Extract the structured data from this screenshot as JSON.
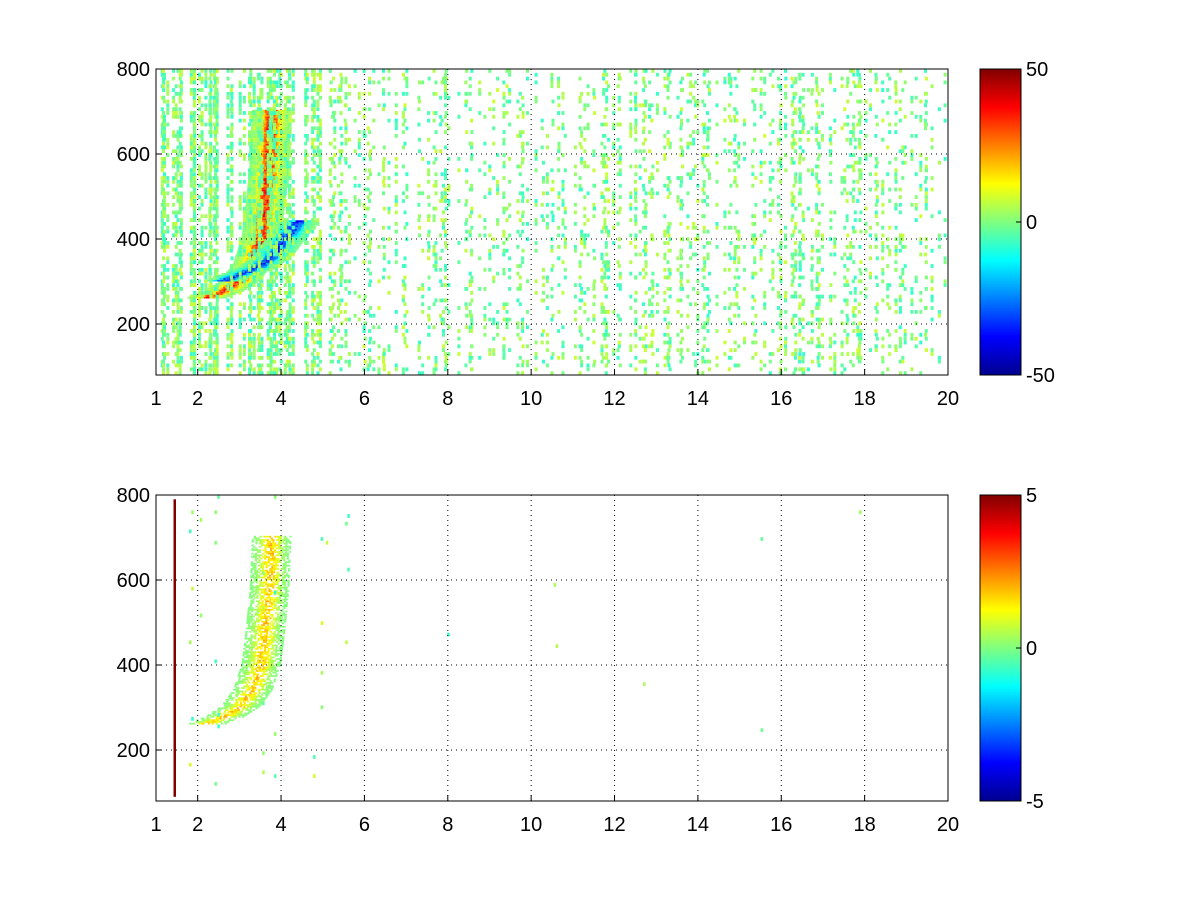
{
  "chart_data": [
    {
      "type": "heatmap",
      "title": "",
      "xlabel": "",
      "ylabel": "",
      "xlim": [
        1,
        20
      ],
      "ylim": [
        80,
        800
      ],
      "x_ticks": [
        "1",
        "2",
        "4",
        "6",
        "8",
        "10",
        "12",
        "14",
        "16",
        "18",
        "20"
      ],
      "x_tick_values": [
        1,
        2,
        4,
        6,
        8,
        10,
        12,
        14,
        16,
        18,
        20
      ],
      "y_ticks": [
        "200",
        "400",
        "600",
        "800"
      ],
      "y_tick_values": [
        200,
        400,
        600,
        800
      ],
      "grid": true,
      "colormap": "jet",
      "colorbar": {
        "min": -50,
        "max": 50,
        "tick_labels": [
          "50",
          "0",
          "-50"
        ],
        "tick_values": [
          50,
          0,
          -50
        ]
      },
      "features": [
        {
          "name": "positive curved ridge",
          "x": [
            2.2,
            2.6,
            3.0,
            3.3,
            3.5,
            3.6,
            3.7,
            3.75
          ],
          "y": [
            260,
            275,
            300,
            340,
            400,
            480,
            580,
            700
          ],
          "value": 40
        },
        {
          "name": "negative curved ridge",
          "x": [
            2.6,
            3.0,
            3.4,
            3.8,
            4.1,
            4.4
          ],
          "y": [
            300,
            315,
            330,
            360,
            400,
            440
          ],
          "value": -40
        }
      ],
      "background_noise_amplitude": 8
    },
    {
      "type": "heatmap",
      "title": "",
      "xlabel": "",
      "ylabel": "",
      "xlim": [
        1,
        20
      ],
      "ylim": [
        80,
        800
      ],
      "x_ticks": [
        "1",
        "2",
        "4",
        "6",
        "8",
        "10",
        "12",
        "14",
        "16",
        "18",
        "20"
      ],
      "x_tick_values": [
        1,
        2,
        4,
        6,
        8,
        10,
        12,
        14,
        16,
        18,
        20
      ],
      "y_ticks": [
        "200",
        "400",
        "600",
        "800"
      ],
      "y_tick_values": [
        200,
        400,
        600,
        800
      ],
      "grid": true,
      "colormap": "jet",
      "colorbar": {
        "min": -5,
        "max": 5,
        "tick_labels": [
          "5",
          "0",
          "-5"
        ],
        "tick_values": [
          5,
          0,
          -5
        ]
      },
      "features": [
        {
          "name": "curved ridge band",
          "x": [
            2.2,
            2.6,
            3.0,
            3.3,
            3.5,
            3.6,
            3.7,
            3.75
          ],
          "y": [
            260,
            275,
            300,
            340,
            400,
            480,
            580,
            700
          ],
          "value": 2
        },
        {
          "name": "vertical line near x=1.4",
          "x": [
            1.42,
            1.42
          ],
          "y": [
            90,
            790
          ],
          "value": 5
        }
      ],
      "background_noise_amplitude": 1
    }
  ]
}
